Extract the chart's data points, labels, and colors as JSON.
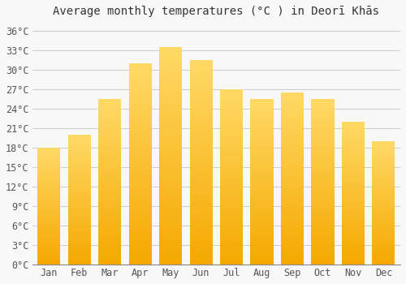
{
  "title": "Average monthly temperatures (°C ) in Deorī Khās",
  "months": [
    "Jan",
    "Feb",
    "Mar",
    "Apr",
    "May",
    "Jun",
    "Jul",
    "Aug",
    "Sep",
    "Oct",
    "Nov",
    "Dec"
  ],
  "values": [
    18.0,
    20.0,
    25.5,
    31.0,
    33.5,
    31.5,
    27.0,
    25.5,
    26.5,
    25.5,
    22.0,
    19.0
  ],
  "bar_color_bottom": "#F5A800",
  "bar_color_top": "#FFD966",
  "background_color": "#f8f8f8",
  "plot_bg_color": "#f8f8f8",
  "grid_color": "#cccccc",
  "yticks": [
    0,
    3,
    6,
    9,
    12,
    15,
    18,
    21,
    24,
    27,
    30,
    33,
    36
  ],
  "ylim": [
    0,
    37.5
  ],
  "title_fontsize": 10,
  "tick_fontsize": 8.5,
  "title_color": "#333333",
  "tick_color": "#555555"
}
